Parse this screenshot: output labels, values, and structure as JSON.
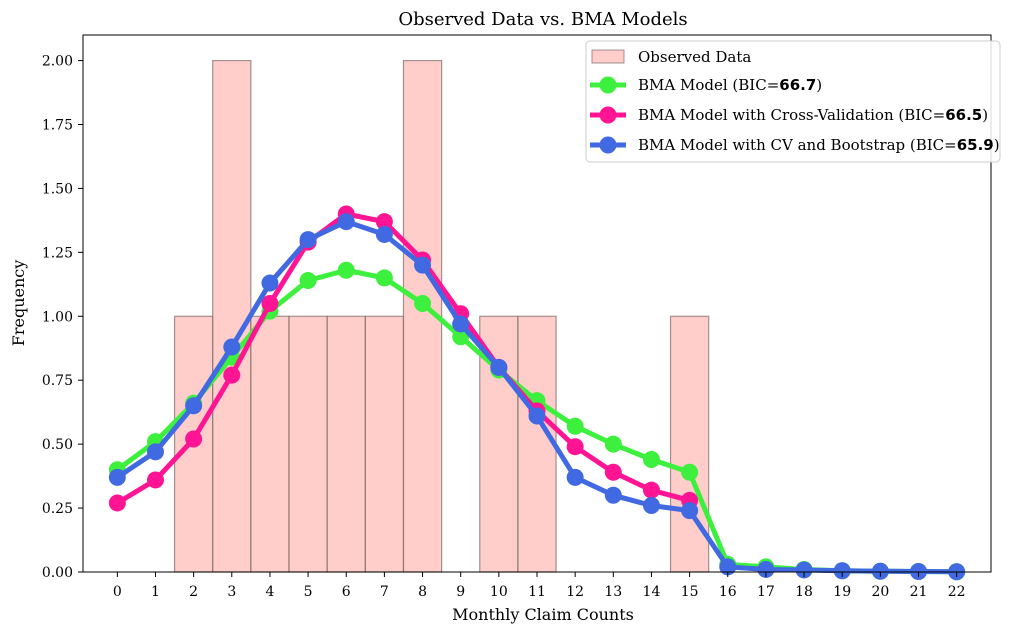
{
  "chart_data": {
    "type": "bar+line",
    "title": "Observed Data vs. BMA Models",
    "xlabel": "Monthly Claim Counts",
    "ylabel": "Frequency",
    "xlim": [
      -0.9,
      22.9
    ],
    "ylim": [
      0,
      2.1
    ],
    "x_ticks": [
      0,
      1,
      2,
      3,
      4,
      5,
      6,
      7,
      8,
      9,
      10,
      11,
      12,
      13,
      14,
      15,
      16,
      17,
      18,
      19,
      20,
      21,
      22
    ],
    "y_ticks": [
      0.0,
      0.25,
      0.5,
      0.75,
      1.0,
      1.25,
      1.5,
      1.75,
      2.0
    ],
    "y_tick_labels": [
      "0.00",
      "0.25",
      "0.50",
      "0.75",
      "1.00",
      "1.25",
      "1.50",
      "1.75",
      "2.00"
    ],
    "legend_position": "top-right",
    "observed": {
      "name": "Observed Data",
      "color": "#ffb3ad",
      "edge_color": "#7a6a68",
      "x": [
        2,
        3,
        4,
        5,
        6,
        7,
        8,
        10,
        11,
        15
      ],
      "values": [
        1,
        2,
        1,
        1,
        1,
        1,
        2,
        1,
        1,
        1
      ]
    },
    "series": [
      {
        "name_prefix": "BMA Model (BIC=",
        "name_bold": "66.7",
        "name_suffix": ")",
        "color": "#3df03d",
        "x": [
          0,
          1,
          2,
          3,
          4,
          5,
          6,
          7,
          8,
          9,
          10,
          11,
          12,
          13,
          14,
          15,
          16,
          17,
          18,
          19,
          20,
          21,
          22
        ],
        "values": [
          0.4,
          0.51,
          0.66,
          0.84,
          1.02,
          1.14,
          1.18,
          1.15,
          1.05,
          0.92,
          0.79,
          0.67,
          0.57,
          0.5,
          0.44,
          0.39,
          0.03,
          0.02,
          0.01,
          0.005,
          0.003,
          0.002,
          0.001
        ]
      },
      {
        "name_prefix": "BMA Model with Cross-Validation (BIC=",
        "name_bold": "66.5",
        "name_suffix": ")",
        "color": "#ff1493",
        "x": [
          0,
          1,
          2,
          3,
          4,
          5,
          6,
          7,
          8,
          9,
          10,
          11,
          12,
          13,
          14,
          15
        ],
        "values": [
          0.27,
          0.36,
          0.52,
          0.77,
          1.05,
          1.29,
          1.4,
          1.37,
          1.22,
          1.01,
          0.8,
          0.63,
          0.49,
          0.39,
          0.32,
          0.28
        ]
      },
      {
        "name_prefix": "BMA Model with CV and Bootstrap (BIC=",
        "name_bold": "65.9",
        "name_suffix": ")",
        "color": "#4169e1",
        "x": [
          0,
          1,
          2,
          3,
          4,
          5,
          6,
          7,
          8,
          9,
          10,
          11,
          12,
          13,
          14,
          15,
          16,
          17,
          18,
          19,
          20,
          21,
          22
        ],
        "values": [
          0.37,
          0.47,
          0.65,
          0.88,
          1.13,
          1.3,
          1.37,
          1.32,
          1.2,
          0.97,
          0.8,
          0.61,
          0.37,
          0.3,
          0.26,
          0.24,
          0.02,
          0.01,
          0.008,
          0.005,
          0.003,
          0.002,
          0.001
        ]
      }
    ]
  }
}
